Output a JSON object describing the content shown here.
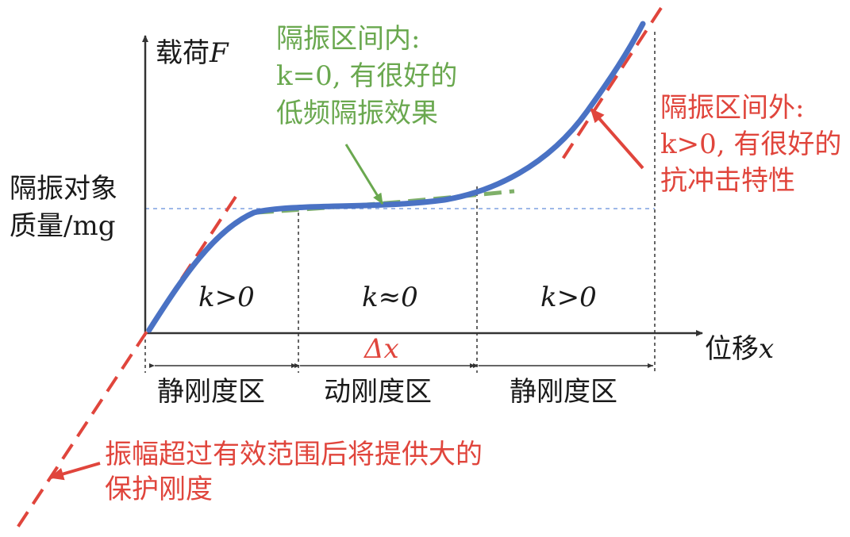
{
  "axes": {
    "y_label": "载荷",
    "y_var": "F",
    "x_label": "位移",
    "x_var": "x",
    "mass_label_line1": "隔振对象",
    "mass_label_line2": "质量/mg"
  },
  "regions": {
    "left_k": "k>0",
    "middle_k": "k≈0",
    "right_k": "k>0",
    "delta_x": "Δx",
    "left_name": "静刚度区",
    "middle_name": "动刚度区",
    "right_name": "静刚度区"
  },
  "annotations": {
    "inside_line1": "隔振区间内:",
    "inside_line2": "k=0, 有很好的",
    "inside_line3": "低频隔振效果",
    "outside_line1": "隔振区间外:",
    "outside_line2": "k>0, 有很好的",
    "outside_line3": "抗冲击特性",
    "protect_line1": "振幅超过有效范围后将提供大的",
    "protect_line2": "保护刚度"
  },
  "colors": {
    "curve": "#4a72c4",
    "green": "#6aa84f",
    "red": "#e0453c",
    "axis": "#333333"
  }
}
